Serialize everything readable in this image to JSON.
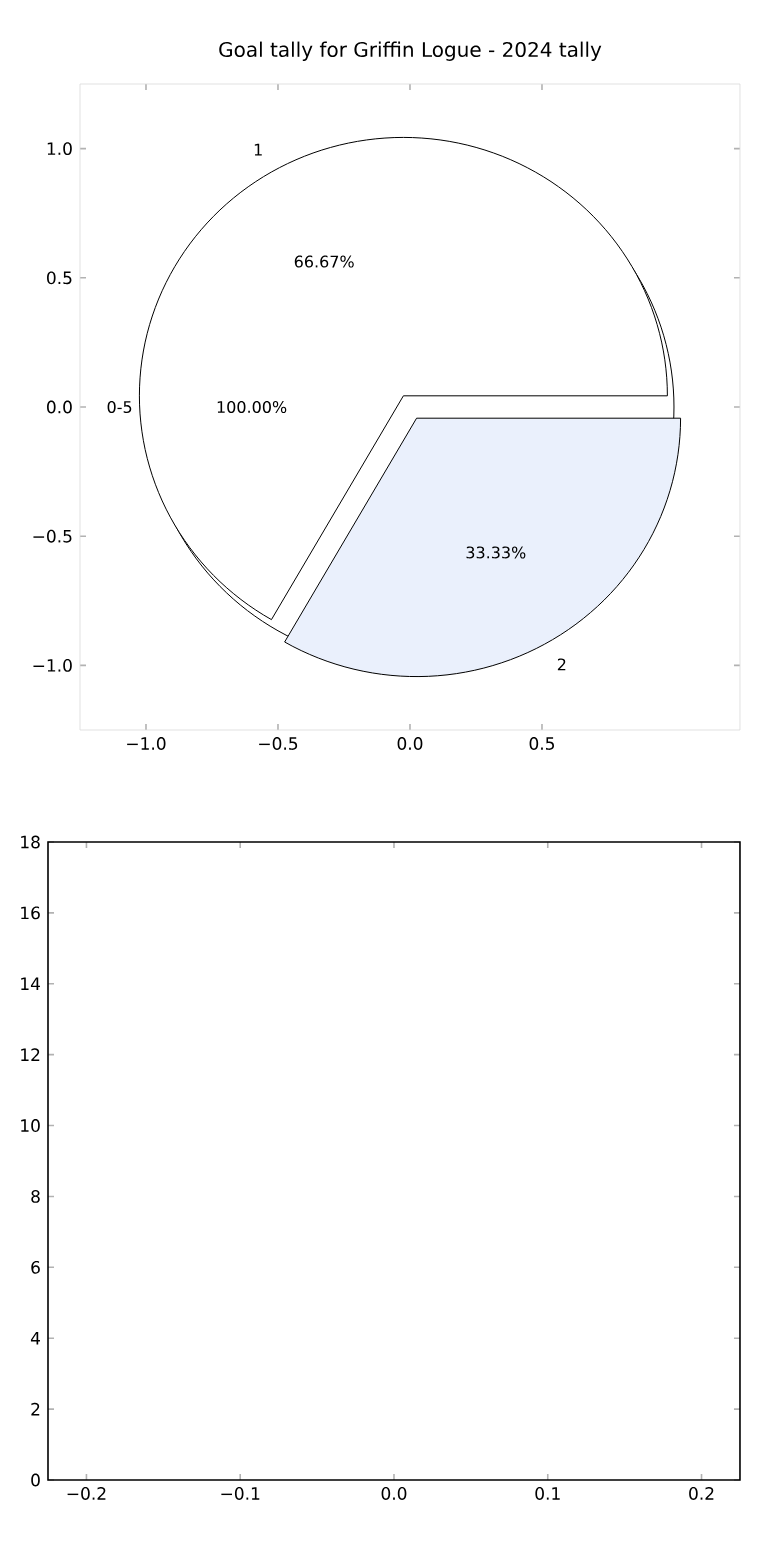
{
  "chart_data": [
    {
      "type": "scatter",
      "title": "Goal tally for Griffin Logue - 2024 tally",
      "xlim": [
        -1.25,
        1.25
      ],
      "ylim": [
        -1.25,
        1.25
      ],
      "xticks": [
        {
          "value": -1.0,
          "label": "−1.0"
        },
        {
          "value": -0.5,
          "label": "−0.5"
        },
        {
          "value": 0.0,
          "label": "0.0"
        },
        {
          "value": 0.5,
          "label": "0.5"
        }
      ],
      "yticks": [
        {
          "value": -1.0,
          "label": "−1.0"
        },
        {
          "value": -0.5,
          "label": "−0.5"
        },
        {
          "value": 0.0,
          "label": "0.0"
        },
        {
          "value": 0.5,
          "label": "0.5"
        },
        {
          "value": 1.0,
          "label": "1.0"
        }
      ]
    },
    {
      "type": "pie",
      "categories": [
        "0-5"
      ],
      "values": [
        100
      ],
      "colors": [
        "#ffffff"
      ],
      "value_labels": [
        "100.00%"
      ]
    },
    {
      "type": "pie",
      "categories": [
        "1",
        "2"
      ],
      "values": [
        66.67,
        33.33
      ],
      "colors": [
        "#ffffff",
        "#eaf0fc"
      ],
      "value_labels": [
        "66.67%",
        "33.33%"
      ]
    },
    {
      "type": "scatter",
      "xlim": [
        -0.225,
        0.225
      ],
      "ylim": [
        0,
        18
      ],
      "xticks": [
        {
          "value": -0.2,
          "label": "−0.2"
        },
        {
          "value": -0.1,
          "label": "−0.1"
        },
        {
          "value": 0.0,
          "label": "0.0"
        },
        {
          "value": 0.1,
          "label": "0.1"
        },
        {
          "value": 0.2,
          "label": "0.2"
        }
      ],
      "yticks": [
        0,
        2,
        4,
        6,
        8,
        10,
        12,
        14,
        16,
        18
      ]
    }
  ]
}
